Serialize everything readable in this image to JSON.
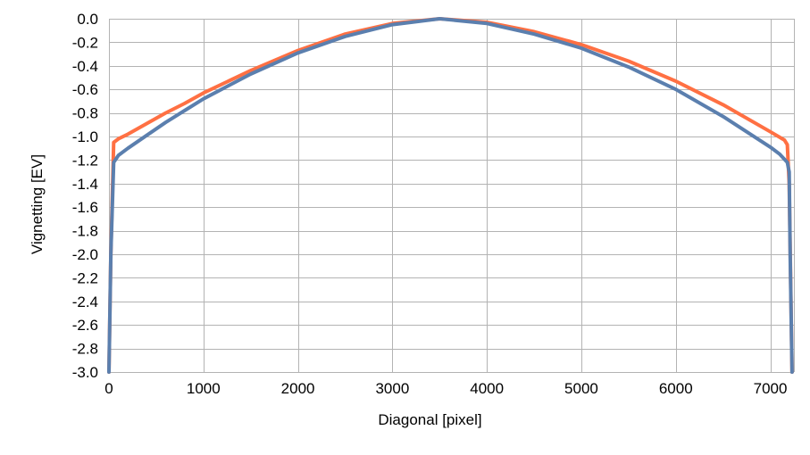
{
  "chart_data": {
    "type": "line",
    "title": "",
    "xlabel": "Diagonal [pixel]",
    "ylabel": "Vignetting [EV]",
    "xlim": [
      0,
      7250
    ],
    "ylim": [
      -3.0,
      0.0
    ],
    "x_ticks": [
      0,
      1000,
      2000,
      3000,
      4000,
      5000,
      6000,
      7000
    ],
    "x_tick_labels": [
      "0",
      "1000",
      "2000",
      "3000",
      "4000",
      "5000",
      "6000",
      "7000"
    ],
    "y_ticks": [
      0.0,
      -0.2,
      -0.4,
      -0.6,
      -0.8,
      -1.0,
      -1.2,
      -1.4,
      -1.6,
      -1.8,
      -2.0,
      -2.2,
      -2.4,
      -2.6,
      -2.8,
      -3.0
    ],
    "y_tick_labels": [
      "0.0",
      "-0.2",
      "-0.4",
      "-0.6",
      "-0.8",
      "-1.0",
      "-1.2",
      "-1.4",
      "-1.6",
      "-1.8",
      "-2.0",
      "-2.2",
      "-2.4",
      "-2.6",
      "-2.8",
      "-3.0"
    ],
    "grid": true,
    "legend": "none",
    "series": [
      {
        "color": "#ff7043",
        "points": [
          [
            0,
            -3.0
          ],
          [
            20,
            -2.0
          ],
          [
            50,
            -1.05
          ],
          [
            100,
            -1.02
          ],
          [
            200,
            -0.98
          ],
          [
            400,
            -0.89
          ],
          [
            600,
            -0.8
          ],
          [
            800,
            -0.72
          ],
          [
            1000,
            -0.63
          ],
          [
            1500,
            -0.44
          ],
          [
            2000,
            -0.27
          ],
          [
            2500,
            -0.13
          ],
          [
            3000,
            -0.04
          ],
          [
            3500,
            0.0
          ],
          [
            4000,
            -0.03
          ],
          [
            4500,
            -0.11
          ],
          [
            5000,
            -0.22
          ],
          [
            5500,
            -0.36
          ],
          [
            6000,
            -0.53
          ],
          [
            6500,
            -0.73
          ],
          [
            7000,
            -0.96
          ],
          [
            7150,
            -1.03
          ],
          [
            7180,
            -1.07
          ],
          [
            7200,
            -1.4
          ],
          [
            7230,
            -3.0
          ]
        ]
      },
      {
        "color": "#5b7fae",
        "points": [
          [
            0,
            -3.0
          ],
          [
            20,
            -2.0
          ],
          [
            50,
            -1.22
          ],
          [
            100,
            -1.16
          ],
          [
            200,
            -1.1
          ],
          [
            400,
            -0.99
          ],
          [
            600,
            -0.88
          ],
          [
            800,
            -0.78
          ],
          [
            1000,
            -0.68
          ],
          [
            1500,
            -0.47
          ],
          [
            2000,
            -0.29
          ],
          [
            2500,
            -0.15
          ],
          [
            3000,
            -0.05
          ],
          [
            3500,
            0.0
          ],
          [
            4000,
            -0.04
          ],
          [
            4500,
            -0.13
          ],
          [
            5000,
            -0.25
          ],
          [
            5500,
            -0.41
          ],
          [
            6000,
            -0.6
          ],
          [
            6500,
            -0.83
          ],
          [
            7000,
            -1.09
          ],
          [
            7100,
            -1.15
          ],
          [
            7180,
            -1.22
          ],
          [
            7200,
            -1.3
          ],
          [
            7210,
            -2.0
          ],
          [
            7230,
            -3.0
          ]
        ]
      }
    ]
  }
}
